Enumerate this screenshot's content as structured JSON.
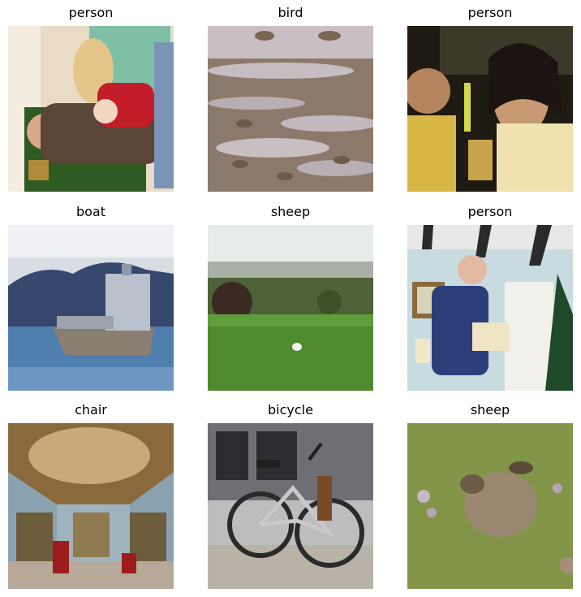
{
  "grid": {
    "items": [
      {
        "label": "person"
      },
      {
        "label": "bird"
      },
      {
        "label": "person"
      },
      {
        "label": "boat"
      },
      {
        "label": "sheep"
      },
      {
        "label": "person"
      },
      {
        "label": "chair"
      },
      {
        "label": "bicycle"
      },
      {
        "label": "sheep"
      }
    ]
  }
}
